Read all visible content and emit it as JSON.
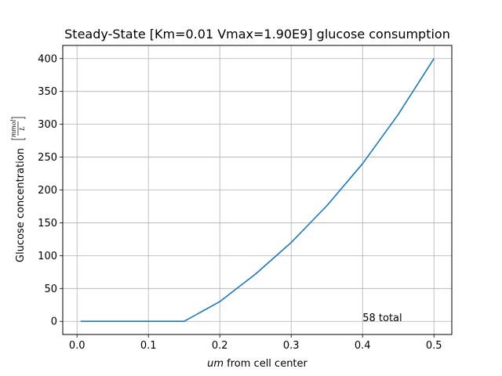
{
  "chart_data": {
    "type": "line",
    "title": "Steady-State [Km=0.01 Vmax=1.90E9] glucose consumption",
    "xlabel_italic": "um",
    "xlabel_rest": " from cell center",
    "ylabel": "Glucose concentration",
    "ylabel_unit_num": "mmol",
    "ylabel_unit_den": "L",
    "xlim": [
      -0.02,
      0.525
    ],
    "ylim": [
      -20,
      420
    ],
    "x_ticks": [
      0.0,
      0.1,
      0.2,
      0.3,
      0.4,
      0.5
    ],
    "x_tick_labels": [
      "0.0",
      "0.1",
      "0.2",
      "0.3",
      "0.4",
      "0.5"
    ],
    "y_ticks": [
      0,
      50,
      100,
      150,
      200,
      250,
      300,
      350,
      400
    ],
    "y_tick_labels": [
      "0",
      "50",
      "100",
      "150",
      "200",
      "250",
      "300",
      "350",
      "400"
    ],
    "grid": true,
    "series": [
      {
        "color": "#1f77b4",
        "x": [
          0.005,
          0.05,
          0.1,
          0.15,
          0.2,
          0.25,
          0.3,
          0.35,
          0.4,
          0.45,
          0.5
        ],
        "y": [
          0,
          0,
          0,
          0,
          30,
          72,
          120,
          176,
          240,
          315,
          400
        ]
      }
    ],
    "annotation": {
      "text": "58 total",
      "x": 0.4,
      "y": 0
    }
  }
}
